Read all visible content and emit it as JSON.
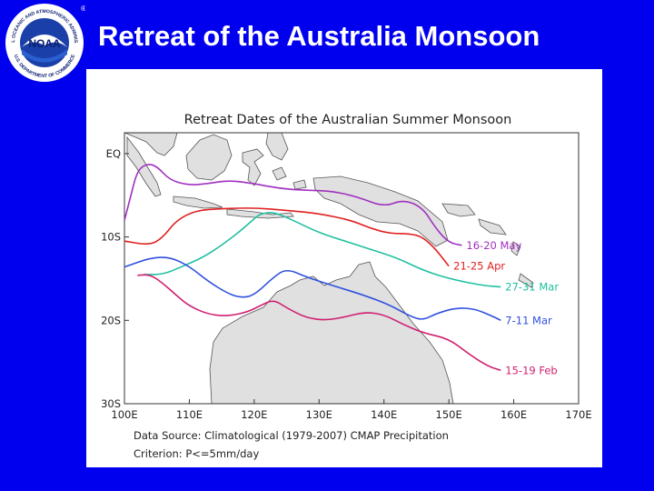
{
  "slide": {
    "title": "Retreat of the Australia Monsoon",
    "logo_text": "NOAA",
    "logo_ring_top": "NATIONAL OCEANIC AND ATMOSPHERIC ADMINISTRATION",
    "logo_ring_bottom": "U.S. DEPARTMENT OF COMMERCE",
    "registered_mark": "®"
  },
  "figure": {
    "title": "Retreat Dates of the Australian Summer Monsoon",
    "source": "Data Source: Climatological (1979-2007) CMAP Precipitation",
    "criterion": "Criterion: P<=5mm/day",
    "x_ticks": [
      {
        "lon": 100,
        "label": "100E"
      },
      {
        "lon": 110,
        "label": "110E"
      },
      {
        "lon": 120,
        "label": "120E"
      },
      {
        "lon": 130,
        "label": "130E"
      },
      {
        "lon": 140,
        "label": "140E"
      },
      {
        "lon": 150,
        "label": "150E"
      },
      {
        "lon": 160,
        "label": "160E"
      },
      {
        "lon": 170,
        "label": "170E"
      }
    ],
    "y_ticks": [
      {
        "lat": 0,
        "label": "EQ"
      },
      {
        "lat": -10,
        "label": "10S"
      },
      {
        "lat": -20,
        "label": "20S"
      },
      {
        "lat": -30,
        "label": "30S"
      }
    ]
  },
  "chart_data": {
    "type": "line",
    "title": "Retreat Dates of the Australian Summer Monsoon",
    "xlim": [
      100,
      170
    ],
    "ylim": [
      -30,
      2.5
    ],
    "series": [
      {
        "name": "16-20 May",
        "color": "#a030c0",
        "points": [
          [
            100,
            -8
          ],
          [
            101,
            -5
          ],
          [
            102,
            -2
          ],
          [
            103.5,
            -1.2
          ],
          [
            105,
            -1.5
          ],
          [
            107,
            -3.2
          ],
          [
            110,
            -3.8
          ],
          [
            113,
            -3.6
          ],
          [
            116,
            -3.2
          ],
          [
            120,
            -3.6
          ],
          [
            124,
            -4.2
          ],
          [
            128,
            -4.4
          ],
          [
            132,
            -4.5
          ],
          [
            136,
            -5.2
          ],
          [
            140,
            -6.4
          ],
          [
            143,
            -5.5
          ],
          [
            146,
            -6.5
          ],
          [
            148,
            -9
          ],
          [
            150,
            -10.7
          ],
          [
            152,
            -11
          ]
        ]
      },
      {
        "name": "21-25 Apr",
        "color": "#e02020",
        "points": [
          [
            100,
            -10.5
          ],
          [
            104,
            -11
          ],
          [
            106,
            -10
          ],
          [
            108,
            -8
          ],
          [
            111,
            -6.8
          ],
          [
            115,
            -6.6
          ],
          [
            120,
            -6.5
          ],
          [
            125,
            -6.8
          ],
          [
            130,
            -7.2
          ],
          [
            135,
            -8
          ],
          [
            138,
            -9
          ],
          [
            141,
            -9.6
          ],
          [
            144,
            -9.6
          ],
          [
            146,
            -10
          ],
          [
            148,
            -11.5
          ],
          [
            149,
            -12.5
          ],
          [
            150,
            -13.5
          ]
        ]
      },
      {
        "name": "27-31 Mar",
        "color": "#20c0a0",
        "points": [
          [
            103,
            -14.5
          ],
          [
            106,
            -14.5
          ],
          [
            109,
            -13.5
          ],
          [
            112,
            -12.5
          ],
          [
            115,
            -11
          ],
          [
            118,
            -9.2
          ],
          [
            120,
            -7.8
          ],
          [
            121,
            -7.2
          ],
          [
            123,
            -7
          ],
          [
            126,
            -8
          ],
          [
            130,
            -9.5
          ],
          [
            134,
            -10.5
          ],
          [
            138,
            -11.5
          ],
          [
            142,
            -12.5
          ],
          [
            146,
            -14
          ],
          [
            150,
            -15
          ],
          [
            155,
            -15.8
          ],
          [
            158,
            -16
          ]
        ]
      },
      {
        "name": "7-11 Mar",
        "color": "#3050e0",
        "points": [
          [
            100,
            -13.6
          ],
          [
            104,
            -12.5
          ],
          [
            107,
            -12.4
          ],
          [
            110,
            -13.5
          ],
          [
            113,
            -15.4
          ],
          [
            116,
            -16.8
          ],
          [
            118,
            -17.3
          ],
          [
            120,
            -17
          ],
          [
            123,
            -14.8
          ],
          [
            125,
            -13.8
          ],
          [
            128,
            -14.8
          ],
          [
            132,
            -15.8
          ],
          [
            137,
            -17
          ],
          [
            141,
            -18.2
          ],
          [
            144,
            -19.5
          ],
          [
            146,
            -20
          ],
          [
            148,
            -19.2
          ],
          [
            151,
            -18.5
          ],
          [
            154,
            -18.6
          ],
          [
            157,
            -19.6
          ],
          [
            158,
            -20
          ]
        ]
      },
      {
        "name": "15-19 Feb",
        "color": "#d02070",
        "points": [
          [
            102,
            -14.6
          ],
          [
            104,
            -14.5
          ],
          [
            106,
            -15.6
          ],
          [
            108,
            -17
          ],
          [
            110,
            -18.3
          ],
          [
            113,
            -19.3
          ],
          [
            116,
            -19.5
          ],
          [
            119,
            -19
          ],
          [
            121,
            -18.2
          ],
          [
            123,
            -17.5
          ],
          [
            125,
            -18.5
          ],
          [
            128,
            -19.7
          ],
          [
            131,
            -20
          ],
          [
            134,
            -19.6
          ],
          [
            137,
            -19
          ],
          [
            140,
            -19.3
          ],
          [
            143,
            -20.5
          ],
          [
            146,
            -21.5
          ],
          [
            150,
            -22.2
          ],
          [
            153,
            -24
          ],
          [
            156,
            -25.5
          ],
          [
            158,
            -26
          ]
        ]
      }
    ]
  },
  "legend_labels": [
    {
      "text": "16-20 May",
      "color": "#a030c0"
    },
    {
      "text": "21-25 Apr",
      "color": "#e02020"
    },
    {
      "text": "27-31 Mar",
      "color": "#20c0a0"
    },
    {
      "text": "7-11 Mar",
      "color": "#3050e0"
    },
    {
      "text": "15-19 Feb",
      "color": "#d02070"
    }
  ]
}
